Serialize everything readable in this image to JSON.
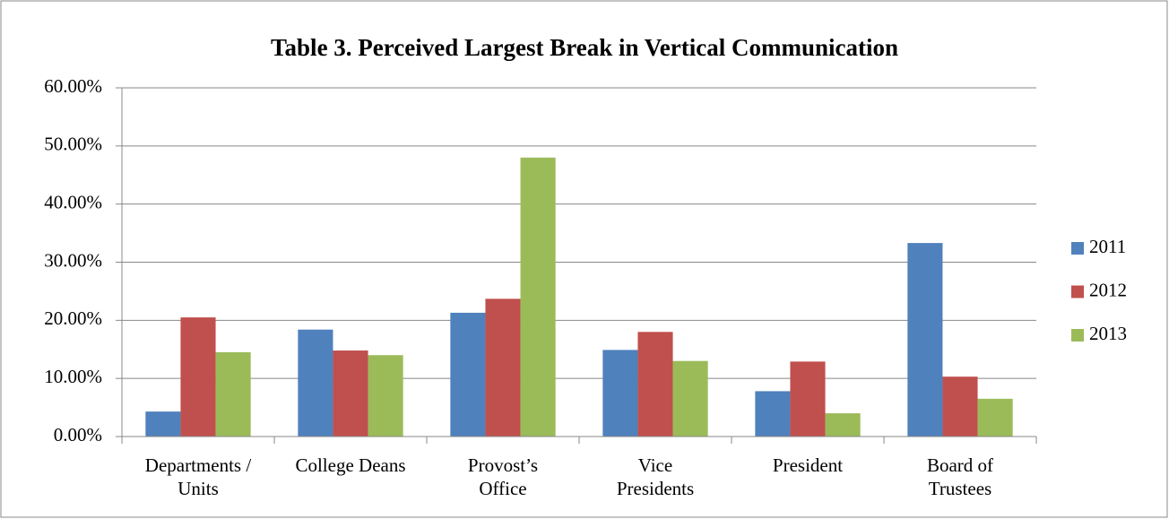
{
  "chart_data": {
    "type": "bar",
    "title": "Table 3.  Perceived Largest Break in Vertical Communication",
    "categories": [
      "Departments /\nUnits",
      "College Deans",
      "Provost’s\nOffice",
      "Vice\nPresidents",
      "President",
      "Board of\nTrustees"
    ],
    "series": [
      {
        "name": "2011",
        "color": "#4f81bd",
        "values": [
          4.3,
          18.4,
          21.3,
          14.9,
          7.8,
          33.3
        ]
      },
      {
        "name": "2012",
        "color": "#c0504d",
        "values": [
          20.5,
          14.8,
          23.7,
          18.0,
          12.9,
          10.3
        ]
      },
      {
        "name": "2013",
        "color": "#9bbb59",
        "values": [
          14.5,
          14.0,
          48.0,
          13.0,
          4.0,
          6.5
        ]
      }
    ],
    "ylim": [
      0,
      60
    ],
    "yticks": [
      {
        "value": 0,
        "label": "0.00%"
      },
      {
        "value": 10,
        "label": "10.00%"
      },
      {
        "value": 20,
        "label": "20.00%"
      },
      {
        "value": 30,
        "label": "30.00%"
      },
      {
        "value": 40,
        "label": "40.00%"
      },
      {
        "value": 50,
        "label": "50.00%"
      },
      {
        "value": 60,
        "label": "60.00%"
      }
    ],
    "grid": true,
    "legend": "right"
  }
}
